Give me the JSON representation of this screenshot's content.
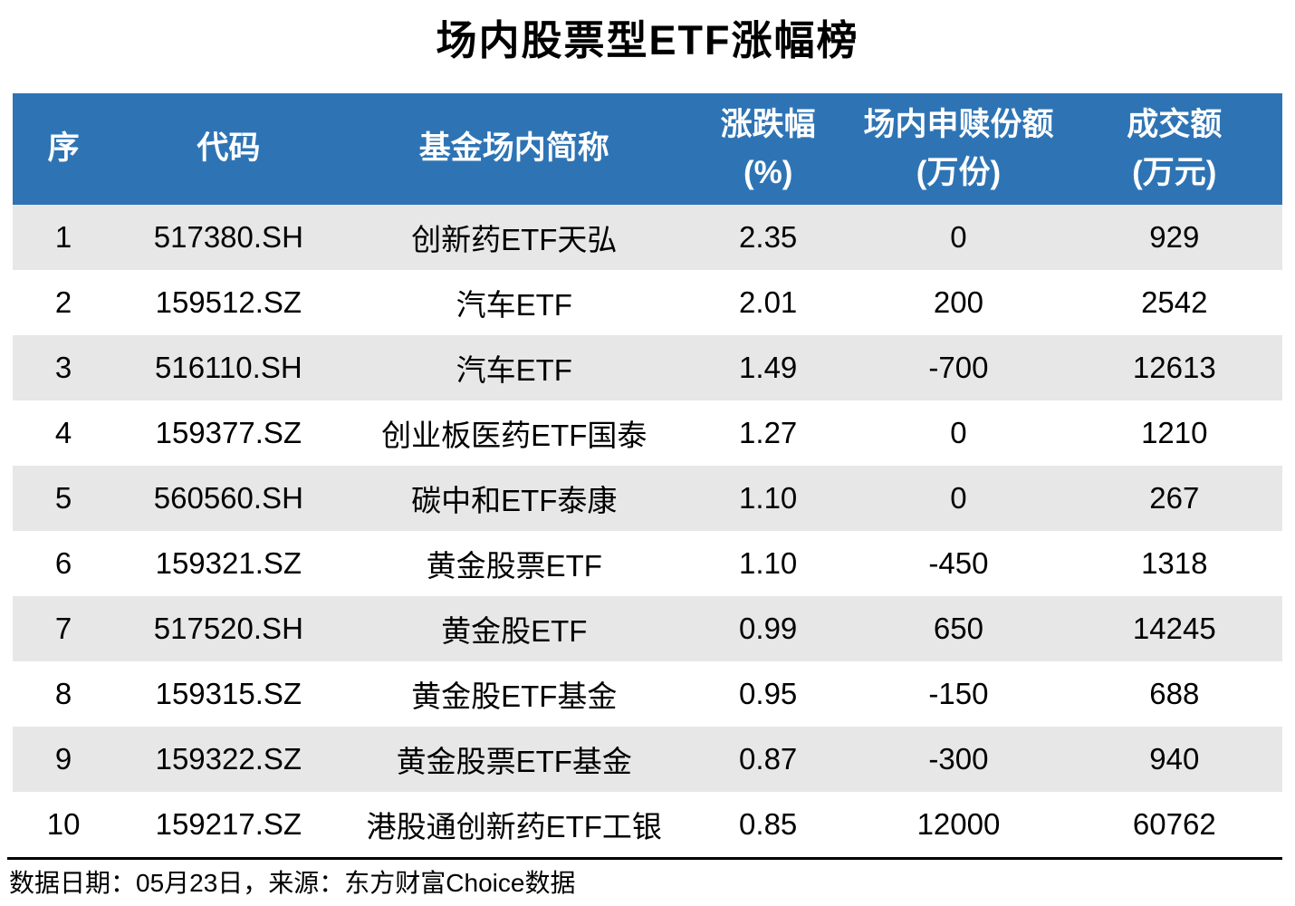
{
  "title": "场内股票型ETF涨幅榜",
  "colors": {
    "header_bg": "#2E74B5",
    "stripe_bg": "#E7E7E7",
    "header_text": "#FFFFFF",
    "body_text": "#000000"
  },
  "table": {
    "columns": [
      {
        "line1": "序",
        "line2": ""
      },
      {
        "line1": "代码",
        "line2": ""
      },
      {
        "line1": "基金场内简称",
        "line2": ""
      },
      {
        "line1": "涨跌幅",
        "line2": "(%)"
      },
      {
        "line1": "场内申赎份额",
        "line2": "(万份)"
      },
      {
        "line1": "成交额",
        "line2": "(万元)"
      }
    ],
    "rows": [
      [
        "1",
        "517380.SH",
        "创新药ETF天弘",
        "2.35",
        "0",
        "929"
      ],
      [
        "2",
        "159512.SZ",
        "汽车ETF",
        "2.01",
        "200",
        "2542"
      ],
      [
        "3",
        "516110.SH",
        "汽车ETF",
        "1.49",
        "-700",
        "12613"
      ],
      [
        "4",
        "159377.SZ",
        "创业板医药ETF国泰",
        "1.27",
        "0",
        "1210"
      ],
      [
        "5",
        "560560.SH",
        "碳中和ETF泰康",
        "1.10",
        "0",
        "267"
      ],
      [
        "6",
        "159321.SZ",
        "黄金股票ETF",
        "1.10",
        "-450",
        "1318"
      ],
      [
        "7",
        "517520.SH",
        "黄金股ETF",
        "0.99",
        "650",
        "14245"
      ],
      [
        "8",
        "159315.SZ",
        "黄金股ETF基金",
        "0.95",
        "-150",
        "688"
      ],
      [
        "9",
        "159322.SZ",
        "黄金股票ETF基金",
        "0.87",
        "-300",
        "940"
      ],
      [
        "10",
        "159217.SZ",
        "港股通创新药ETF工银",
        "0.85",
        "12000",
        "60762"
      ]
    ]
  },
  "footer": {
    "text": "数据日期：05月23日，来源：东方财富Choice数据"
  },
  "chart_data": {
    "type": "table",
    "title": "场内股票型ETF涨幅榜",
    "columns": [
      "序",
      "代码",
      "基金场内简称",
      "涨跌幅(%)",
      "场内申赎份额(万份)",
      "成交额(万元)"
    ],
    "rows": [
      [
        1,
        "517380.SH",
        "创新药ETF天弘",
        2.35,
        0,
        929
      ],
      [
        2,
        "159512.SZ",
        "汽车ETF",
        2.01,
        200,
        2542
      ],
      [
        3,
        "516110.SH",
        "汽车ETF",
        1.49,
        -700,
        12613
      ],
      [
        4,
        "159377.SZ",
        "创业板医药ETF国泰",
        1.27,
        0,
        1210
      ],
      [
        5,
        "560560.SH",
        "碳中和ETF泰康",
        1.1,
        0,
        267
      ],
      [
        6,
        "159321.SZ",
        "黄金股票ETF",
        1.1,
        -450,
        1318
      ],
      [
        7,
        "517520.SH",
        "黄金股ETF",
        0.99,
        650,
        14245
      ],
      [
        8,
        "159315.SZ",
        "黄金股ETF基金",
        0.95,
        -150,
        688
      ],
      [
        9,
        "159322.SZ",
        "黄金股票ETF基金",
        0.87,
        -300,
        940
      ],
      [
        10,
        "159217.SZ",
        "港股通创新药ETF工银",
        0.85,
        12000,
        60762
      ]
    ],
    "source_note": "数据日期：05月23日，来源：东方财富Choice数据"
  }
}
